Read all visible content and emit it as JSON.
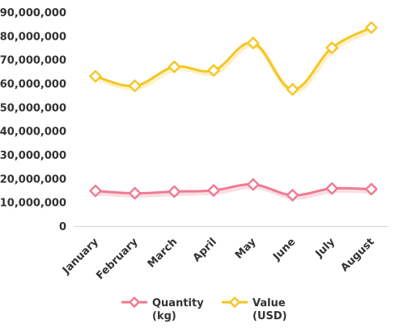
{
  "chart_data": {
    "type": "line",
    "categories": [
      "January",
      "February",
      "March",
      "April",
      "May",
      "June",
      "July",
      "August"
    ],
    "series": [
      {
        "name": "Quantity (kg)",
        "legend_lines": [
          "Quantity",
          "(kg)"
        ],
        "color": "#f07a93",
        "values": [
          14800000,
          13800000,
          14500000,
          15000000,
          17500000,
          13000000,
          15800000,
          15500000
        ]
      },
      {
        "name": "Value (USD)",
        "legend_lines": [
          "Value",
          "(USD)"
        ],
        "color": "#f5c623",
        "values": [
          63000000,
          59000000,
          67000000,
          65500000,
          77000000,
          57500000,
          75000000,
          83500000
        ]
      }
    ],
    "yticks": [
      "0",
      "10,000,000",
      "20,000,000",
      "30,000,000",
      "40,000,000",
      "50,000,000",
      "60,000,000",
      "70,000,000",
      "80,000,000",
      "90,000,000"
    ],
    "ylim": [
      0,
      90000000
    ],
    "grid": false,
    "legend_position": "bottom",
    "marker": "diamond",
    "smooth": true
  }
}
